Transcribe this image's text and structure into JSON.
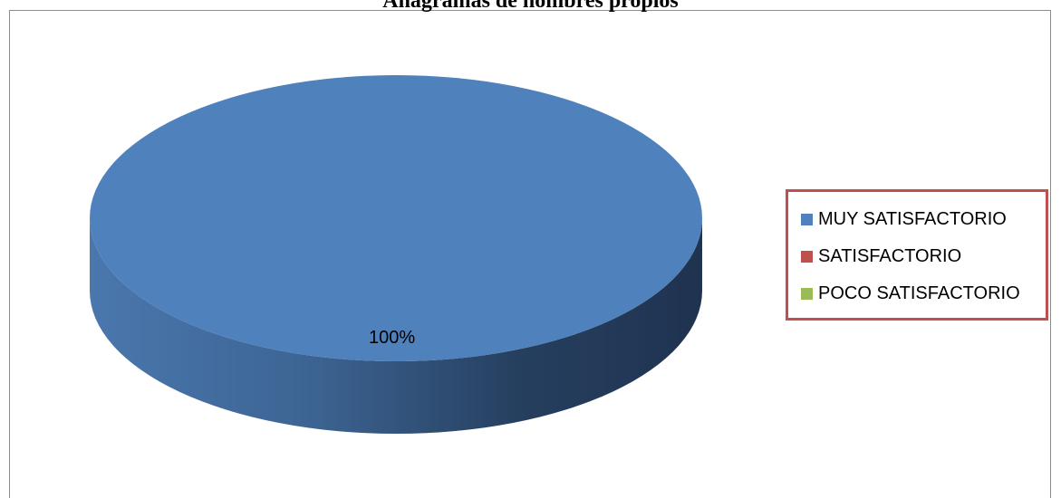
{
  "chart_data": {
    "type": "pie",
    "title": "Anagramas de nombres propios",
    "categories": [
      "MUY SATISFACTORIO",
      "SATISFACTORIO",
      "POCO SATISFACTORIO"
    ],
    "values": [
      100,
      0,
      0
    ],
    "colors": [
      "#4f81bd",
      "#c0504d",
      "#9bbb59"
    ],
    "data_labels": [
      "100%"
    ],
    "legend_position": "right",
    "style": "3d"
  }
}
